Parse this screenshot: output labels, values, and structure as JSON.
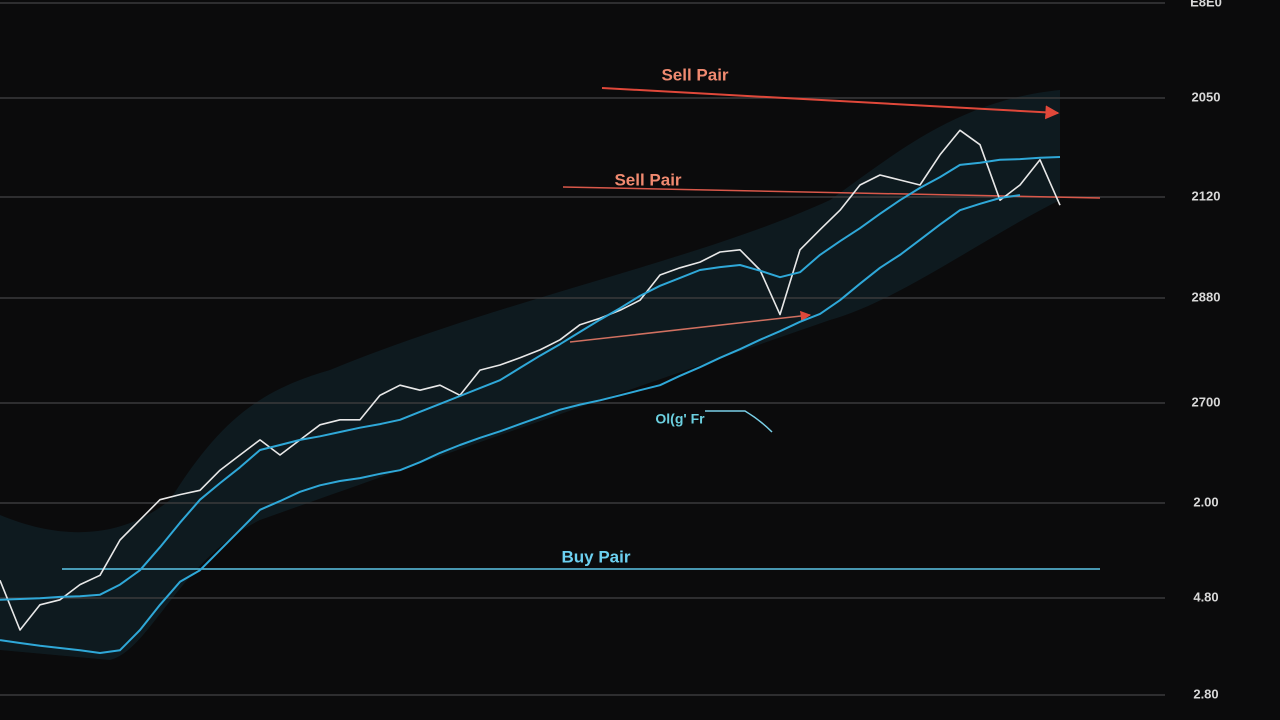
{
  "chart_data": {
    "type": "line",
    "ylim": [
      0,
      100
    ],
    "axis_labels": [
      "E8E0",
      "2050",
      "2120",
      "2880",
      "2700",
      "2.00",
      "4.80",
      "2.80"
    ],
    "annotations": [
      "Sell Pair",
      "Sell Pair",
      "Buy Pair",
      "Ol(g' Fr"
    ],
    "categories": [
      null,
      null,
      null,
      null,
      null,
      null,
      null,
      null,
      null,
      null,
      null,
      null,
      null,
      null,
      null,
      null,
      null,
      null,
      null,
      null,
      null,
      null,
      null,
      null,
      null,
      null,
      null,
      null,
      null,
      null,
      null,
      null,
      null,
      null,
      null,
      null,
      null,
      null,
      null,
      null,
      null,
      null,
      null,
      null,
      null,
      null,
      null,
      null,
      null,
      null,
      null,
      null,
      null,
      null
    ],
    "series": [
      {
        "color": "#e8e8e8",
        "values": [
          19.4,
          12.5,
          16.0,
          16.7,
          18.8,
          20.1,
          25.0,
          27.8,
          30.6,
          31.3,
          31.9,
          34.7,
          36.8,
          38.9,
          36.8,
          38.9,
          41.0,
          41.7,
          41.7,
          45.1,
          46.5,
          45.8,
          46.5,
          45.1,
          48.6,
          49.3,
          50.3,
          51.4,
          52.8,
          54.9,
          55.8,
          56.9,
          58.3,
          61.8,
          62.8,
          63.6,
          65.0,
          65.3,
          62.5,
          56.3,
          65.3,
          68.1,
          70.8,
          74.3,
          75.7,
          75.0,
          74.3,
          78.5,
          81.9,
          79.9,
          72.2,
          74.3,
          77.8,
          71.5
        ]
      },
      {
        "color": "#2fa8d8",
        "values": [
          16.7,
          16.8,
          16.9,
          17.1,
          17.2,
          17.4,
          18.8,
          20.8,
          24.0,
          27.4,
          30.6,
          32.9,
          35.1,
          37.5,
          38.2,
          38.9,
          39.4,
          40.0,
          40.6,
          41.1,
          41.7,
          42.8,
          43.9,
          45.0,
          46.1,
          47.2,
          48.9,
          50.6,
          52.2,
          53.9,
          55.6,
          57.2,
          58.9,
          60.3,
          61.4,
          62.5,
          62.9,
          63.2,
          62.4,
          61.5,
          62.2,
          64.6,
          66.5,
          68.3,
          70.3,
          72.2,
          73.9,
          75.4,
          77.1,
          77.4,
          77.8,
          77.9,
          78.1,
          78.2
        ]
      },
      {
        "color": "#2fa8d8",
        "values": [
          11.1,
          10.7,
          10.3,
          10.0,
          9.7,
          9.3,
          9.7,
          12.5,
          16.0,
          19.2,
          20.8,
          23.6,
          26.4,
          29.2,
          30.4,
          31.7,
          32.6,
          33.2,
          33.6,
          34.2,
          34.7,
          35.8,
          37.1,
          38.2,
          39.2,
          40.1,
          41.1,
          42.1,
          43.1,
          43.8,
          44.4,
          45.1,
          45.8,
          46.5,
          47.8,
          49.0,
          50.3,
          51.5,
          52.8,
          54.0,
          55.3,
          56.4,
          58.3,
          60.6,
          62.8,
          64.6,
          66.7,
          68.8,
          70.8,
          71.7,
          72.5,
          72.9,
          null,
          null
        ]
      }
    ]
  }
}
